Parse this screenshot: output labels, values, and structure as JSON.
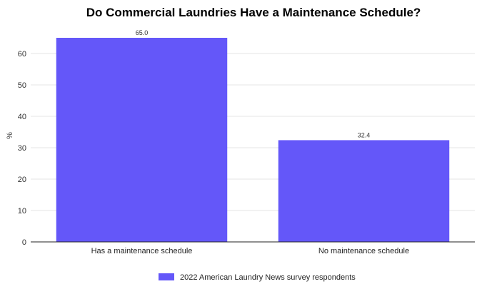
{
  "chart_data": {
    "type": "bar",
    "title": "Do Commercial Laundries Have a Maintenance Schedule?",
    "xlabel": "",
    "ylabel": "%",
    "categories": [
      "Has a maintenance schedule",
      "No maintenance schedule"
    ],
    "series": [
      {
        "name": "2022 American Laundry News survey respondents",
        "values": [
          65.0,
          32.4
        ],
        "labels": [
          "65.0",
          "32.4"
        ],
        "color": "#6457f9"
      }
    ],
    "ylim": [
      0,
      65
    ],
    "yticks": [
      0,
      10,
      20,
      30,
      40,
      50,
      60
    ],
    "grid": true,
    "legend_position": "bottom"
  }
}
